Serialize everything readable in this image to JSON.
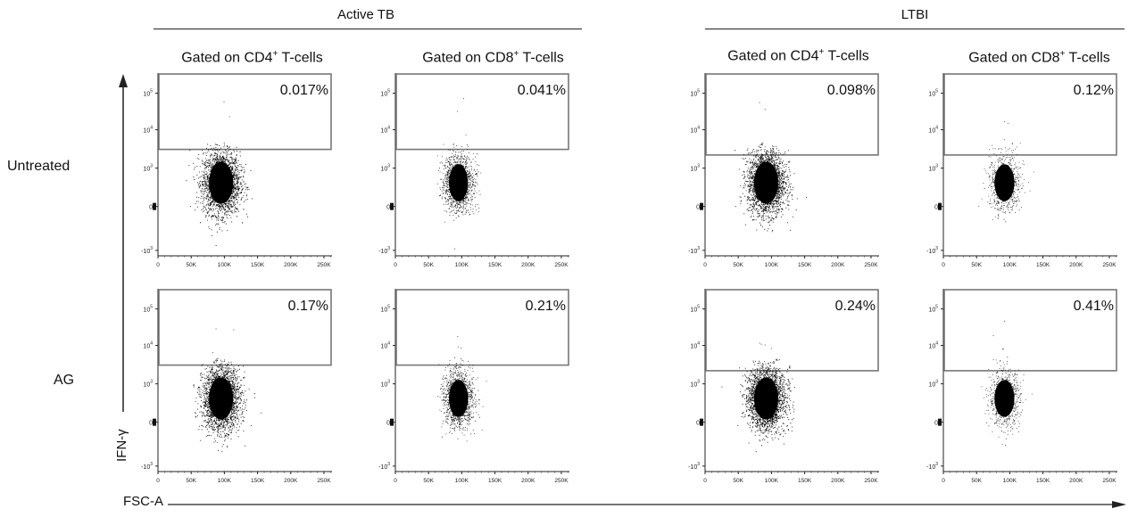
{
  "figure": {
    "groups": [
      "Active TB",
      "LTBI"
    ],
    "column_titles": [
      {
        "pre": "Gated on CD4",
        "sup": "+",
        "post": " T-cells"
      },
      {
        "pre": "Gated on CD8",
        "sup": "+",
        "post": " T-cells"
      },
      {
        "pre": "Gated on CD4",
        "sup": "+",
        "post": " T-cells"
      },
      {
        "pre": "Gated on CD8",
        "sup": "+",
        "post": " T-cells"
      }
    ],
    "rows": [
      "Untreated",
      "AG"
    ],
    "x_axis_label": "FSC-A",
    "y_axis_label": "IFN-γ"
  },
  "chart_data": {
    "type": "scatter",
    "x_ticks": [
      "0",
      "50K",
      "100K",
      "150K",
      "200K",
      "250K"
    ],
    "y_ticks": [
      {
        "base": "10",
        "exp": "5"
      },
      {
        "base": "10",
        "exp": "4"
      },
      {
        "base": "10",
        "exp": "3"
      },
      {
        "base": "0",
        "exp": ""
      },
      {
        "base": "-10",
        "exp": "3"
      }
    ],
    "xlim": [
      0,
      262144
    ],
    "y_scale": "biexponential",
    "colors": {
      "points": "#000000",
      "gate": "#777777",
      "axis": "#222222"
    },
    "panels": [
      {
        "group": "Active TB",
        "gate": "CD4",
        "row": "Untreated",
        "percent": "0.017%",
        "gate_threshold_log": 3.5,
        "center_x": 95000,
        "population": "large"
      },
      {
        "group": "Active TB",
        "gate": "CD8",
        "row": "Untreated",
        "percent": "0.041%",
        "gate_threshold_log": 3.5,
        "center_x": 95000,
        "population": "medium"
      },
      {
        "group": "LTBI",
        "gate": "CD4",
        "row": "Untreated",
        "percent": "0.098%",
        "gate_threshold_log": 3.35,
        "center_x": 92000,
        "population": "large"
      },
      {
        "group": "LTBI",
        "gate": "CD8",
        "row": "Untreated",
        "percent": "0.12%",
        "gate_threshold_log": 3.35,
        "center_x": 92000,
        "population": "small"
      },
      {
        "group": "Active TB",
        "gate": "CD4",
        "row": "AG",
        "percent": "0.17%",
        "gate_threshold_log": 3.5,
        "center_x": 95000,
        "population": "large"
      },
      {
        "group": "Active TB",
        "gate": "CD8",
        "row": "AG",
        "percent": "0.21%",
        "gate_threshold_log": 3.5,
        "center_x": 95000,
        "population": "medium"
      },
      {
        "group": "LTBI",
        "gate": "CD4",
        "row": "AG",
        "percent": "0.24%",
        "gate_threshold_log": 3.35,
        "center_x": 92000,
        "population": "large"
      },
      {
        "group": "LTBI",
        "gate": "CD8",
        "row": "AG",
        "percent": "0.41%",
        "gate_threshold_log": 3.35,
        "center_x": 92000,
        "population": "small"
      }
    ]
  }
}
